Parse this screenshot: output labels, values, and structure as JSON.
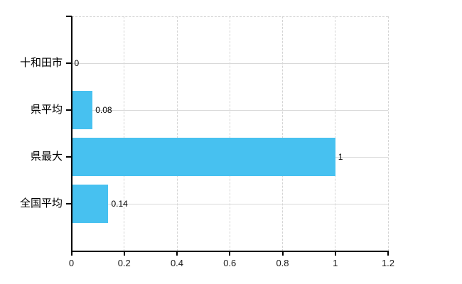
{
  "chart_data": {
    "type": "bar",
    "orientation": "horizontal",
    "title": "",
    "xlabel": "",
    "ylabel": "",
    "categories": [
      "十和田市",
      "県平均",
      "県最大",
      "全国平均"
    ],
    "values": [
      0,
      0.08,
      1,
      0.14
    ],
    "value_labels": [
      "0",
      "0.08",
      "1",
      "0.14"
    ],
    "xlim": [
      0,
      1.2
    ],
    "xticks": [
      0,
      0.2,
      0.4,
      0.6,
      0.8,
      1,
      1.2
    ],
    "xtick_labels": [
      "0",
      "0.2",
      "0.4",
      "0.6",
      "0.8",
      "1",
      "1.2"
    ],
    "grid": "on",
    "legend": "none",
    "colors": {
      "bar": "#47c1f0",
      "axis": "#000000",
      "grid_solid": "#d9d9d9",
      "grid_dashed": "#d4d4d4",
      "text": "#000000",
      "background": "#ffffff"
    }
  }
}
